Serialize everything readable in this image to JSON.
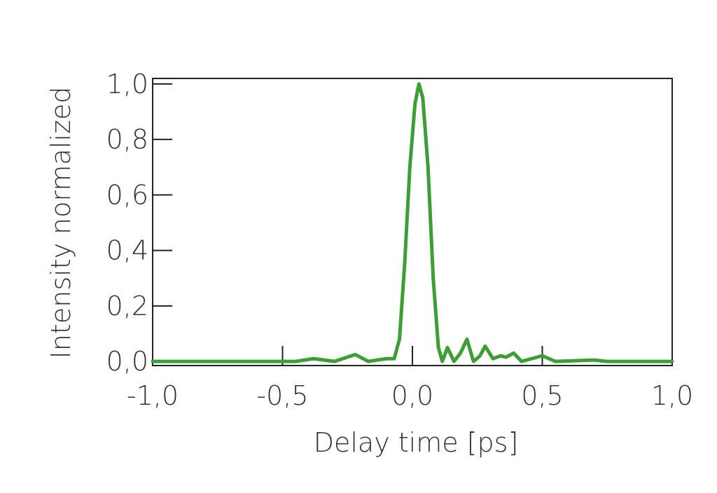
{
  "chart_data": {
    "type": "line",
    "xlabel": "Delay time [ps]",
    "ylabel": "Intensity normalized",
    "x": [
      -1.0,
      -0.45,
      -0.38,
      -0.3,
      -0.22,
      -0.17,
      -0.1,
      -0.07,
      -0.05,
      -0.03,
      -0.01,
      0.01,
      0.025,
      0.04,
      0.06,
      0.08,
      0.1,
      0.115,
      0.135,
      0.16,
      0.185,
      0.21,
      0.235,
      0.26,
      0.28,
      0.31,
      0.34,
      0.36,
      0.39,
      0.42,
      0.5,
      0.55,
      0.7,
      0.75,
      1.0
    ],
    "series": [
      {
        "name": "Intensity",
        "color": "#3c9e34",
        "values": [
          0.0,
          0.0,
          0.01,
          0.0,
          0.025,
          0.0,
          0.01,
          0.01,
          0.08,
          0.35,
          0.7,
          0.93,
          1.0,
          0.95,
          0.7,
          0.3,
          0.05,
          0.0,
          0.05,
          0.0,
          0.03,
          0.08,
          0.0,
          0.02,
          0.055,
          0.01,
          0.02,
          0.015,
          0.03,
          0.0,
          0.02,
          0.0,
          0.005,
          0.0,
          0.0
        ]
      }
    ],
    "xlim": [
      -1.0,
      1.0
    ],
    "ylim": [
      -0.015,
      1.02
    ],
    "xticks": [
      {
        "value": -1.0,
        "label": "-1,0"
      },
      {
        "value": -0.5,
        "label": "-0,5"
      },
      {
        "value": 0.0,
        "label": "0,0"
      },
      {
        "value": 0.5,
        "label": "0,5"
      },
      {
        "value": 1.0,
        "label": "1,0"
      }
    ],
    "yticks": [
      {
        "value": 0.0,
        "label": "0,0"
      },
      {
        "value": 0.2,
        "label": "0,2"
      },
      {
        "value": 0.4,
        "label": "0,4"
      },
      {
        "value": 0.6,
        "label": "0,6"
      },
      {
        "value": 0.8,
        "label": "0,8"
      },
      {
        "value": 1.0,
        "label": "1,0"
      }
    ]
  }
}
